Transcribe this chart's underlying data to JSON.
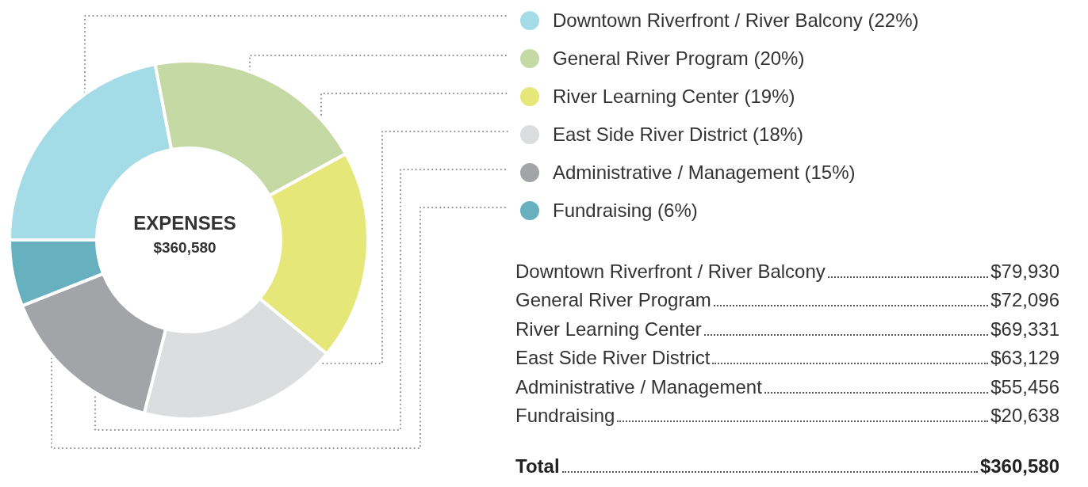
{
  "chart_data": {
    "type": "donut",
    "title": "EXPENSES",
    "subtitle": "$360,580",
    "categories": [
      "Downtown Riverfront / River Balcony",
      "General River Program",
      "River Learning Center",
      "East Side River District",
      "Administrative / Management",
      "Fundraising"
    ],
    "values": [
      22,
      20,
      19,
      18,
      15,
      6
    ],
    "colors": [
      "#a3dbe6",
      "#c5d9a5",
      "#e5e878",
      "#dcdddf",
      "#a3a4a8",
      "#66b0c0"
    ],
    "totals": [
      "$360,580"
    ],
    "annotations": [
      "(22%)",
      "(20%)",
      "(19%)",
      "(18%)",
      "(15%)",
      "(6%)",
      "Total",
      "$79,930",
      "$72,096",
      "$69,331",
      "$63,129",
      "$55,456",
      "$20,638"
    ],
    "legend": "top right"
  }
}
